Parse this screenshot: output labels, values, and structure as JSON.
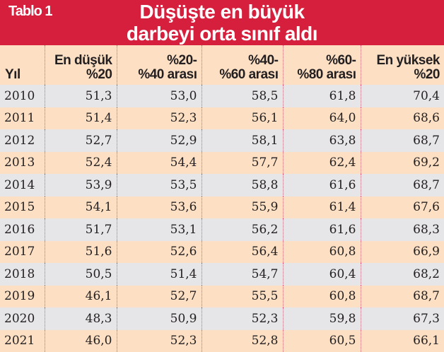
{
  "banner": {
    "tag": "Tablo 1",
    "title_line1": "Düşüşte en büyük",
    "title_line2": "darbeyi orta sınıf aldı"
  },
  "colors": {
    "banner": "#d51f3d",
    "row_alt_gray": "#e6e6e8",
    "row_alt_peach": "#fde0c4",
    "separator": "#e35a79"
  },
  "table": {
    "headers": [
      {
        "line1": "",
        "line2": "Yıl"
      },
      {
        "line1": "En düşük",
        "line2": "%20"
      },
      {
        "line1": "%20-",
        "line2": "%40 arası"
      },
      {
        "line1": "%40-",
        "line2": "%60 arası"
      },
      {
        "line1": "%60-",
        "line2": "%80 arası"
      },
      {
        "line1": "En yüksek",
        "line2": "%20"
      }
    ],
    "rows": [
      [
        "2010",
        "51,3",
        "53,0",
        "58,5",
        "61,8",
        "70,4"
      ],
      [
        "2011",
        "51,4",
        "52,3",
        "56,1",
        "64,0",
        "68,6"
      ],
      [
        "2012",
        "52,7",
        "52,9",
        "58,1",
        "63,8",
        "68,7"
      ],
      [
        "2013",
        "52,4",
        "54,4",
        "57,7",
        "62,4",
        "69,2"
      ],
      [
        "2014",
        "53,9",
        "53,5",
        "58,8",
        "61,6",
        "68,7"
      ],
      [
        "2015",
        "54,1",
        "53,6",
        "55,9",
        "61,4",
        "67,6"
      ],
      [
        "2016",
        "51,7",
        "53,1",
        "56,2",
        "61,6",
        "68,3"
      ],
      [
        "2017",
        "51,6",
        "52,6",
        "56,4",
        "60,8",
        "66,9"
      ],
      [
        "2018",
        "50,5",
        "51,4",
        "54,7",
        "60,4",
        "68,2"
      ],
      [
        "2019",
        "46,1",
        "52,7",
        "55,5",
        "60,8",
        "68,7"
      ],
      [
        "2020",
        "48,3",
        "50,9",
        "52,3",
        "59,8",
        "67,3"
      ],
      [
        "2021",
        "46,0",
        "52,3",
        "52,8",
        "60,5",
        "66,1"
      ]
    ]
  }
}
